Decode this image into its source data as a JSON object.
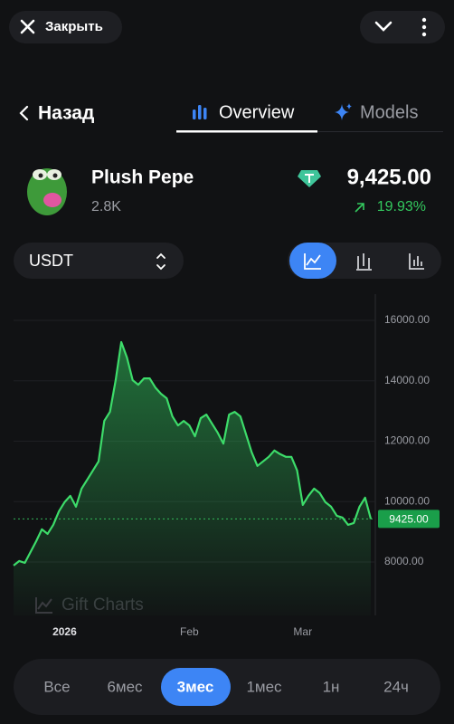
{
  "header": {
    "close": "Закрыть"
  },
  "nav": {
    "back": "Назад",
    "tabs": [
      "Overview",
      "Models"
    ]
  },
  "asset": {
    "name": "Plush Pepe",
    "volume": "2.8K",
    "price": "9,425.00",
    "change": "19.93%"
  },
  "currency": "USDT",
  "watermark": "Gift Charts",
  "periods": [
    "Все",
    "6мес",
    "3мес",
    "1мес",
    "1н",
    "24ч"
  ],
  "selected_period": 2,
  "chart_data": {
    "type": "line",
    "color": "#3ddc6a",
    "values": [
      7880,
      8030,
      7970,
      8330,
      8690,
      9080,
      8930,
      9230,
      9680,
      9980,
      10190,
      9830,
      10430,
      10730,
      11030,
      11330,
      12670,
      12970,
      14020,
      15280,
      14770,
      14020,
      13870,
      14080,
      14080,
      13780,
      13570,
      13420,
      12820,
      12520,
      12670,
      12520,
      12160,
      12760,
      12880,
      12580,
      12280,
      11920,
      12880,
      12970,
      12820,
      12220,
      11630,
      11180,
      11330,
      11480,
      11690,
      11570,
      11480,
      11480,
      11030,
      9890,
      10190,
      10430,
      10280,
      9980,
      9830,
      9530,
      9470,
      9230,
      9290,
      9830,
      10130,
      9425
    ],
    "last_value_label": "9425.00",
    "ylim": [
      6230,
      16870
    ],
    "yticks": [
      {
        "value": 8000,
        "label": "8000.00"
      },
      {
        "value": 10000,
        "label": "10000.00"
      },
      {
        "value": 12000,
        "label": "12000.00"
      },
      {
        "value": 14000,
        "label": "14000.00"
      },
      {
        "value": 16000,
        "label": "16000.00"
      }
    ],
    "xticks": [
      {
        "value": 9,
        "label": "2026"
      },
      {
        "value": 31,
        "label": "Feb"
      },
      {
        "value": 51,
        "label": "Mar"
      }
    ],
    "grid": true
  }
}
